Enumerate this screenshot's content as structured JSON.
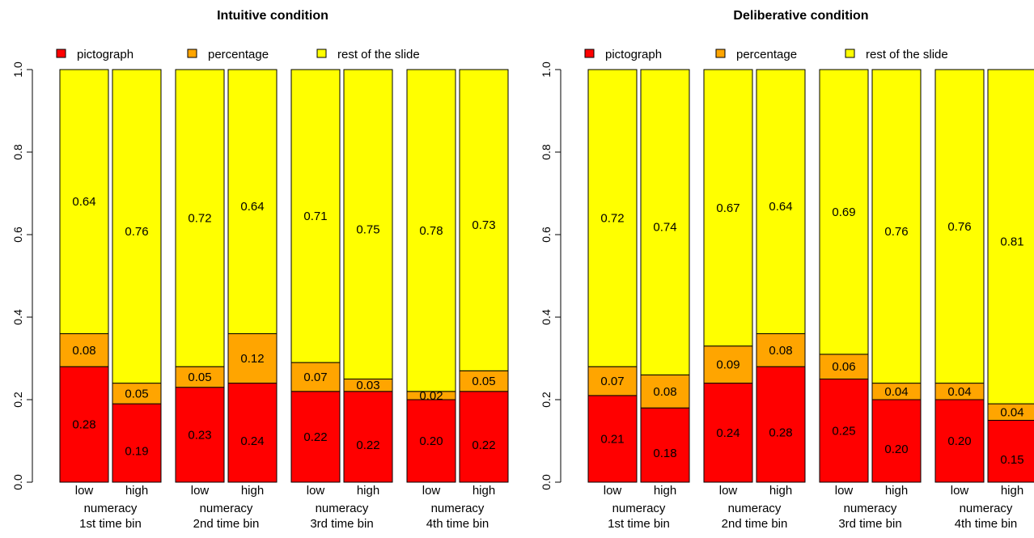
{
  "chart_data": [
    {
      "type": "bar",
      "stacked": true,
      "title": "Intuitive condition",
      "xlabel": "",
      "ylabel": "",
      "ylim": [
        0,
        1
      ],
      "yticks": [
        "0.0",
        "0.2",
        "0.4",
        "0.6",
        "0.8",
        "1.0"
      ],
      "legend": {
        "position": "top",
        "entries": [
          "pictograph",
          "percentage",
          "rest of the slide"
        ]
      },
      "colors": {
        "pictograph": "#ff0000",
        "percentage": "#ffa500",
        "rest of the slide": "#ffff00"
      },
      "groups": [
        {
          "line1": "numeracy",
          "line2": "1st time bin",
          "bars": [
            {
              "label": "low",
              "values": [
                0.28,
                0.08,
                0.64
              ],
              "labels": [
                "0.28",
                "0.08",
                "0.64"
              ]
            },
            {
              "label": "high",
              "values": [
                0.19,
                0.05,
                0.76
              ],
              "labels": [
                "0.19",
                "0.05",
                "0.76"
              ]
            }
          ]
        },
        {
          "line1": "numeracy",
          "line2": "2nd time bin",
          "bars": [
            {
              "label": "low",
              "values": [
                0.23,
                0.05,
                0.72
              ],
              "labels": [
                "0.23",
                "0.05",
                "0.72"
              ]
            },
            {
              "label": "high",
              "values": [
                0.24,
                0.12,
                0.64
              ],
              "labels": [
                "0.24",
                "0.12",
                "0.64"
              ]
            }
          ]
        },
        {
          "line1": "numeracy",
          "line2": "3rd time bin",
          "bars": [
            {
              "label": "low",
              "values": [
                0.22,
                0.07,
                0.71
              ],
              "labels": [
                "0.22",
                "0.07",
                "0.71"
              ]
            },
            {
              "label": "high",
              "values": [
                0.22,
                0.03,
                0.75
              ],
              "labels": [
                "0.22",
                "0.03",
                "0.75"
              ]
            }
          ]
        },
        {
          "line1": "numeracy",
          "line2": "4th time bin",
          "bars": [
            {
              "label": "low",
              "values": [
                0.2,
                0.02,
                0.78
              ],
              "labels": [
                "0.20",
                "0.02",
                "0.78"
              ]
            },
            {
              "label": "high",
              "values": [
                0.22,
                0.05,
                0.73
              ],
              "labels": [
                "0.22",
                "0.05",
                "0.73"
              ]
            }
          ]
        }
      ]
    },
    {
      "type": "bar",
      "stacked": true,
      "title": "Deliberative condition",
      "xlabel": "",
      "ylabel": "",
      "ylim": [
        0,
        1
      ],
      "yticks": [
        "0.0",
        "0.2",
        "0.4",
        "0.6",
        "0.8",
        "1.0"
      ],
      "legend": {
        "position": "top",
        "entries": [
          "pictograph",
          "percentage",
          "rest of the slide"
        ]
      },
      "colors": {
        "pictograph": "#ff0000",
        "percentage": "#ffa500",
        "rest of the slide": "#ffff00"
      },
      "groups": [
        {
          "line1": "numeracy",
          "line2": "1st time bin",
          "bars": [
            {
              "label": "low",
              "values": [
                0.21,
                0.07,
                0.72
              ],
              "labels": [
                "0.21",
                "0.07",
                "0.72"
              ]
            },
            {
              "label": "high",
              "values": [
                0.18,
                0.08,
                0.74
              ],
              "labels": [
                "0.18",
                "0.08",
                "0.74"
              ]
            }
          ]
        },
        {
          "line1": "numeracy",
          "line2": "2nd time bin",
          "bars": [
            {
              "label": "low",
              "values": [
                0.24,
                0.09,
                0.67
              ],
              "labels": [
                "0.24",
                "0.09",
                "0.67"
              ]
            },
            {
              "label": "high",
              "values": [
                0.28,
                0.08,
                0.64
              ],
              "labels": [
                "0.28",
                "0.08",
                "0.64"
              ]
            }
          ]
        },
        {
          "line1": "numeracy",
          "line2": "3rd time bin",
          "bars": [
            {
              "label": "low",
              "values": [
                0.25,
                0.06,
                0.69
              ],
              "labels": [
                "0.25",
                "0.06",
                "0.69"
              ]
            },
            {
              "label": "high",
              "values": [
                0.2,
                0.04,
                0.76
              ],
              "labels": [
                "0.20",
                "0.04",
                "0.76"
              ]
            }
          ]
        },
        {
          "line1": "numeracy",
          "line2": "4th time bin",
          "bars": [
            {
              "label": "low",
              "values": [
                0.2,
                0.04,
                0.76
              ],
              "labels": [
                "0.20",
                "0.04",
                "0.76"
              ]
            },
            {
              "label": "high",
              "values": [
                0.15,
                0.04,
                0.81
              ],
              "labels": [
                "0.15",
                "0.04",
                "0.81"
              ]
            }
          ]
        }
      ]
    }
  ]
}
